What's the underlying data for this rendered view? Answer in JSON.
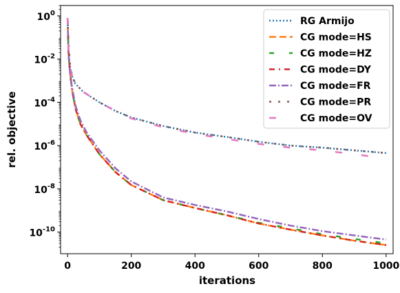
{
  "chart_data": {
    "type": "line",
    "xlabel": "iterations",
    "ylabel": "rel. objective",
    "xlim": [
      -22,
      1022
    ],
    "ylim": [
      1e-11,
      3
    ],
    "yscale": "log",
    "grid": false,
    "legend_position": "top-right",
    "x_ticks": [
      {
        "value": 0,
        "label": "0"
      },
      {
        "value": 200,
        "label": "200"
      },
      {
        "value": 400,
        "label": "400"
      },
      {
        "value": 600,
        "label": "600"
      },
      {
        "value": 800,
        "label": "800"
      },
      {
        "value": 1000,
        "label": "1000"
      }
    ],
    "y_ticks": [
      {
        "value": 1,
        "base": "10",
        "exp": "0"
      },
      {
        "value": 0.01,
        "base": "10",
        "exp": "-2"
      },
      {
        "value": 0.0001,
        "base": "10",
        "exp": "-4"
      },
      {
        "value": 1e-06,
        "base": "10",
        "exp": "-6"
      },
      {
        "value": 1e-08,
        "base": "10",
        "exp": "-8"
      },
      {
        "value": 1e-10,
        "base": "10",
        "exp": "-10"
      }
    ],
    "series": [
      {
        "name": "RG Armijo",
        "color": "#1f77b4",
        "dash": "2,3",
        "width": 2.5,
        "x": [
          0,
          3,
          8,
          15,
          25,
          50,
          100,
          150,
          200,
          300,
          400,
          500,
          600,
          700,
          800,
          900,
          1000
        ],
        "y": [
          0.8,
          0.02,
          0.004,
          0.0015,
          0.0007,
          0.0003,
          0.0001,
          4e-05,
          2e-05,
          8e-06,
          4e-06,
          2.5e-06,
          1.5e-06,
          1e-06,
          8e-07,
          6e-07,
          4.5e-07
        ]
      },
      {
        "name": "CG mode=HS",
        "color": "#ff7f0e",
        "dash": "10,5",
        "width": 2.5,
        "x": [
          0,
          3,
          8,
          15,
          25,
          40,
          60,
          100,
          150,
          200,
          300,
          400,
          500,
          600,
          700,
          800,
          900,
          1000
        ],
        "y": [
          0.8,
          0.015,
          0.002,
          0.0003,
          5e-05,
          1e-05,
          3e-06,
          4e-07,
          6e-08,
          1.5e-08,
          3e-09,
          1.3e-09,
          6e-10,
          2.5e-10,
          1.3e-10,
          7e-11,
          4e-11,
          2.5e-11
        ]
      },
      {
        "name": "CG mode=HZ",
        "color": "#2ca02c",
        "dash": "7,22",
        "width": 2.5,
        "x": [
          0,
          3,
          8,
          15,
          25,
          40,
          60,
          100,
          150,
          200,
          300,
          400,
          500,
          600,
          700,
          800,
          900,
          1000
        ],
        "y": [
          0.8,
          0.015,
          0.002,
          0.0003,
          5e-05,
          1e-05,
          3e-06,
          4e-07,
          6e-08,
          1.5e-08,
          3e-09,
          1.3e-09,
          6e-10,
          2.7e-10,
          1.5e-10,
          8e-11,
          4.8e-11,
          3e-11
        ]
      },
      {
        "name": "CG mode=DY",
        "color": "#d62728",
        "dash": "8,6,2,6",
        "width": 2.5,
        "x": [
          0,
          3,
          8,
          15,
          25,
          40,
          60,
          100,
          150,
          200,
          300,
          400,
          500,
          600,
          700,
          800,
          900,
          1000
        ],
        "y": [
          0.8,
          0.015,
          0.002,
          0.0003,
          5e-05,
          1e-05,
          3e-06,
          4e-07,
          6e-08,
          1.5e-08,
          3e-09,
          1.3e-09,
          6e-10,
          2.5e-10,
          1.3e-10,
          7e-11,
          4e-11,
          2.5e-11
        ]
      },
      {
        "name": "CG mode=FR",
        "color": "#9467bd",
        "dash": "10,3,2,3",
        "width": 2.5,
        "x": [
          0,
          3,
          8,
          15,
          25,
          40,
          60,
          100,
          150,
          200,
          300,
          400,
          500,
          600,
          700,
          800,
          900,
          1000
        ],
        "y": [
          0.8,
          0.015,
          0.002,
          0.0004,
          7e-05,
          1.5e-05,
          4e-06,
          6e-07,
          9e-08,
          2.2e-08,
          4e-09,
          1.8e-09,
          9e-10,
          4e-10,
          2e-10,
          1.1e-10,
          7e-11,
          4.5e-11
        ]
      },
      {
        "name": "CG mode=PR",
        "color": "#8c564b",
        "dash": "3,10",
        "width": 2.5,
        "x": [
          0,
          3,
          8,
          15,
          25,
          50,
          100,
          150,
          200,
          300,
          400,
          500,
          600,
          700,
          800,
          900,
          1000
        ],
        "y": [
          0.8,
          0.05,
          0.005,
          0.0016,
          0.0007,
          0.0003,
          0.0001,
          4e-05,
          2e-05,
          8e-06,
          4e-06,
          2.5e-06,
          1.5e-06,
          1e-06,
          8e-07,
          6e-07,
          4.5e-07
        ]
      },
      {
        "name": "CG mode=OV",
        "color": "#e377c2",
        "dash": "10,28",
        "width": 2.5,
        "x": [
          0,
          3,
          8,
          15,
          25,
          50,
          100,
          150,
          200,
          300,
          400,
          500,
          600,
          700,
          800,
          900,
          1000
        ],
        "y": [
          0.8,
          0.02,
          0.004,
          0.0015,
          0.0007,
          0.0003,
          0.0001,
          4e-05,
          1.8e-05,
          7e-06,
          3.5e-06,
          2e-06,
          1.2e-06,
          8e-07,
          6e-07,
          4e-07,
          2.5e-07
        ]
      }
    ]
  }
}
